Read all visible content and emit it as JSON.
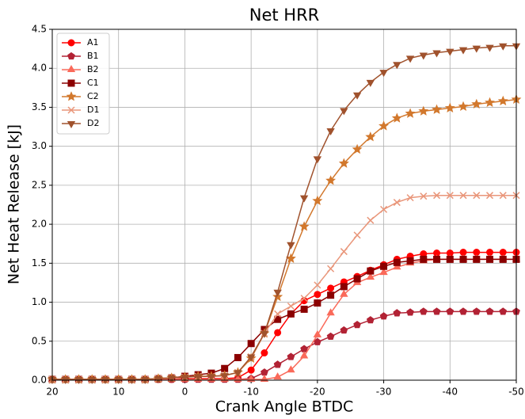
{
  "chart_data": {
    "type": "line",
    "title": "Net HRR",
    "x_label": "Crank Angle BTDC",
    "y_label": "Net Heat Release [kJ]",
    "x": [
      20,
      18,
      16,
      14,
      12,
      10,
      8,
      6,
      4,
      2,
      0,
      -2,
      -4,
      -6,
      -8,
      -10,
      -12,
      -14,
      -16,
      -18,
      -20,
      -22,
      -24,
      -26,
      -28,
      -30,
      -32,
      -34,
      -36,
      -38,
      -40,
      -42,
      -44,
      -46,
      -48,
      -50
    ],
    "series": [
      {
        "name": "A1",
        "color": "#ff0000",
        "marker": "circle",
        "values": [
          0.01,
          0.01,
          0.01,
          0.01,
          0.01,
          0.01,
          0.01,
          0.01,
          0.01,
          0.01,
          0.02,
          0.02,
          0.02,
          0.02,
          0.03,
          0.13,
          0.35,
          0.61,
          0.85,
          1.02,
          1.1,
          1.18,
          1.26,
          1.33,
          1.41,
          1.48,
          1.55,
          1.59,
          1.62,
          1.63,
          1.63,
          1.64,
          1.64,
          1.64,
          1.64,
          1.64
        ]
      },
      {
        "name": "B1",
        "color": "#b22234",
        "marker": "pentagon",
        "values": [
          0.01,
          0.01,
          0.01,
          0.01,
          0.01,
          0.01,
          0.01,
          0.01,
          0.01,
          0.01,
          0.01,
          0.01,
          0.01,
          0.01,
          0.01,
          0.02,
          0.1,
          0.2,
          0.3,
          0.4,
          0.49,
          0.56,
          0.64,
          0.71,
          0.77,
          0.82,
          0.86,
          0.87,
          0.88,
          0.88,
          0.88,
          0.88,
          0.88,
          0.88,
          0.88,
          0.88
        ]
      },
      {
        "name": "B2",
        "color": "#fa6a5a",
        "marker": "triangle-up",
        "values": [
          0.01,
          0.01,
          0.01,
          0.01,
          0.01,
          0.01,
          0.01,
          0.01,
          0.01,
          0.01,
          0.01,
          0.01,
          0.01,
          0.01,
          0.01,
          0.01,
          0.01,
          0.04,
          0.13,
          0.31,
          0.58,
          0.86,
          1.1,
          1.25,
          1.32,
          1.38,
          1.45,
          1.5,
          1.53,
          1.55,
          1.55,
          1.55,
          1.55,
          1.55,
          1.55,
          1.55
        ]
      },
      {
        "name": "C1",
        "color": "#8b0000",
        "marker": "square",
        "values": [
          0.01,
          0.01,
          0.01,
          0.01,
          0.01,
          0.01,
          0.01,
          0.01,
          0.02,
          0.03,
          0.05,
          0.07,
          0.09,
          0.15,
          0.29,
          0.47,
          0.65,
          0.78,
          0.85,
          0.91,
          0.99,
          1.09,
          1.2,
          1.3,
          1.4,
          1.46,
          1.51,
          1.53,
          1.55,
          1.55,
          1.55,
          1.55,
          1.55,
          1.55,
          1.55,
          1.55
        ]
      },
      {
        "name": "C2",
        "color": "#d2782d",
        "marker": "star",
        "values": [
          0.01,
          0.01,
          0.01,
          0.01,
          0.01,
          0.01,
          0.01,
          0.01,
          0.02,
          0.03,
          0.04,
          0.05,
          0.05,
          0.06,
          0.1,
          0.28,
          0.6,
          1.07,
          1.56,
          1.97,
          2.3,
          2.56,
          2.78,
          2.96,
          3.12,
          3.26,
          3.36,
          3.42,
          3.45,
          3.47,
          3.49,
          3.51,
          3.54,
          3.56,
          3.58,
          3.6
        ]
      },
      {
        "name": "D1",
        "color": "#e9967a",
        "marker": "x",
        "values": [
          0.01,
          0.01,
          0.01,
          0.01,
          0.01,
          0.01,
          0.01,
          0.01,
          0.02,
          0.03,
          0.04,
          0.05,
          0.05,
          0.06,
          0.1,
          0.3,
          0.6,
          0.85,
          0.95,
          1.05,
          1.22,
          1.43,
          1.65,
          1.86,
          2.05,
          2.19,
          2.28,
          2.34,
          2.36,
          2.37,
          2.37,
          2.37,
          2.37,
          2.37,
          2.37,
          2.37
        ]
      },
      {
        "name": "D2",
        "color": "#a0522d",
        "marker": "triangle-down",
        "values": [
          0.01,
          0.01,
          0.01,
          0.01,
          0.01,
          0.01,
          0.01,
          0.01,
          0.02,
          0.03,
          0.04,
          0.05,
          0.05,
          0.06,
          0.1,
          0.3,
          0.6,
          1.13,
          1.74,
          2.34,
          2.84,
          3.2,
          3.46,
          3.66,
          3.82,
          3.95,
          4.05,
          4.13,
          4.17,
          4.2,
          4.22,
          4.24,
          4.26,
          4.27,
          4.29,
          4.29
        ]
      }
    ],
    "xlim": [
      20,
      -50
    ],
    "xticks": [
      20,
      10,
      0,
      -10,
      -20,
      -30,
      -40,
      -50
    ],
    "ylim": [
      0,
      4.5
    ],
    "yticks": [
      {
        "value": 0,
        "label": "0.0"
      },
      {
        "value": 0.5,
        "label": "0.5"
      },
      {
        "value": 1,
        "label": "1.0"
      },
      {
        "value": 1.5,
        "label": "1.5"
      },
      {
        "value": 2,
        "label": "2.0"
      },
      {
        "value": 2.5,
        "label": "2.5"
      },
      {
        "value": 3,
        "label": "3.0"
      },
      {
        "value": 3.5,
        "label": "3.5"
      },
      {
        "value": 4,
        "label": "4.0"
      },
      {
        "value": 4.5,
        "label": "4.5"
      }
    ],
    "grid": true,
    "legend": "upper-left"
  }
}
